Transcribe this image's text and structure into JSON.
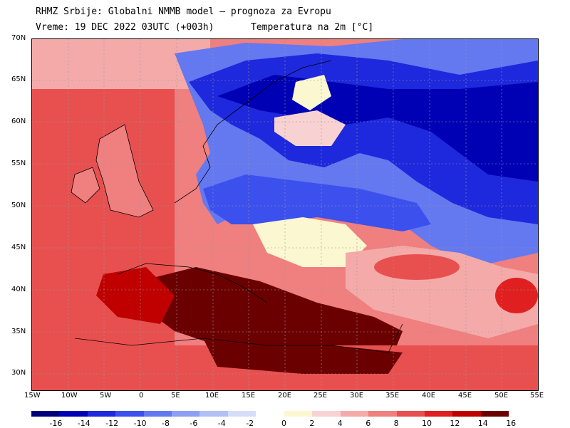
{
  "header": {
    "line1": "RHMZ Srbije: Globalni NMMB model — prognoza za Evropu",
    "line2": "Vreme: 19 DEC 2022 03UTC (+003h)",
    "line3": "Temperatura na 2m [°C]"
  },
  "lat_labels": [
    "70N",
    "65N",
    "60N",
    "55N",
    "50N",
    "45N",
    "40N",
    "35N",
    "30N"
  ],
  "lon_labels": [
    "15W",
    "10W",
    "5W",
    "0",
    "5E",
    "10E",
    "15E",
    "20E",
    "25E",
    "30E",
    "35E",
    "40E",
    "45E",
    "50E",
    "55E"
  ],
  "legend": {
    "cold_labels": [
      "-16",
      "-14",
      "-12",
      "-10",
      "-8",
      "-6",
      "-4",
      "-2"
    ],
    "warm_labels": [
      "0",
      "2",
      "4",
      "6",
      "8",
      "10",
      "12",
      "14",
      "16"
    ],
    "cold_colors": [
      "#00007d",
      "#0000b4",
      "#1e28dc",
      "#3c50ee",
      "#6478f0",
      "#8c9ff2",
      "#b3c0f6",
      "#d6ddfa"
    ],
    "warm_colors": [
      "#fbf7d0",
      "#f8d2d2",
      "#f5aaaa",
      "#f07f7f",
      "#e85050",
      "#e02020",
      "#c00000",
      "#6b0000"
    ]
  },
  "colors": {
    "sea_warm": "#e85050",
    "land_warm": "#f5aaaa",
    "cold_core": "#0000b4",
    "hot_core": "#6b0000",
    "neutral": "#fbf7d0"
  }
}
